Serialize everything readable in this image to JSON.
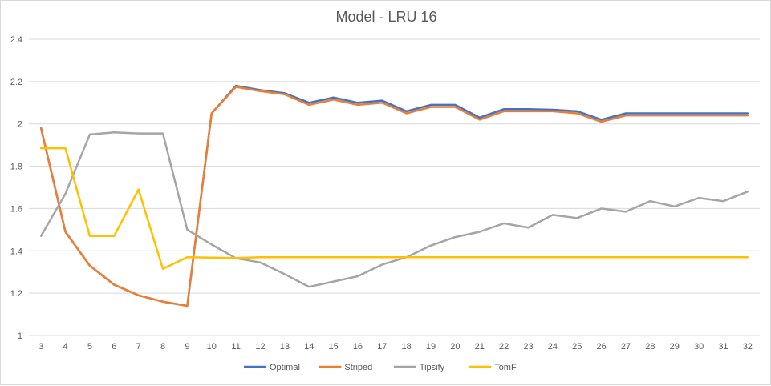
{
  "chart_data": {
    "type": "line",
    "title": "Model - LRU 16",
    "xlabel": "",
    "ylabel": "",
    "x": [
      3,
      4,
      5,
      6,
      7,
      8,
      9,
      10,
      11,
      12,
      13,
      14,
      15,
      16,
      17,
      18,
      19,
      20,
      21,
      22,
      23,
      24,
      25,
      26,
      27,
      28,
      29,
      30,
      31,
      32
    ],
    "ylim": [
      1,
      2.4
    ],
    "yticks": [
      "1",
      "1.2",
      "1.4",
      "1.6",
      "1.8",
      "2",
      "2.2",
      "2.4"
    ],
    "grid": "horizontal",
    "legend_position": "bottom",
    "series": [
      {
        "name": "Optimal",
        "color": "#4472C4",
        "values": [
          1.98,
          1.49,
          1.33,
          1.24,
          1.19,
          1.16,
          1.14,
          2.05,
          2.18,
          2.16,
          2.145,
          2.1,
          2.125,
          2.1,
          2.11,
          2.06,
          2.09,
          2.09,
          2.03,
          2.07,
          2.07,
          2.067,
          2.06,
          2.02,
          2.05,
          2.05,
          2.05,
          2.05,
          2.05,
          2.05
        ]
      },
      {
        "name": "Striped",
        "color": "#ED7D31",
        "values": [
          1.98,
          1.49,
          1.33,
          1.24,
          1.19,
          1.16,
          1.14,
          2.05,
          2.175,
          2.155,
          2.14,
          2.09,
          2.115,
          2.09,
          2.1,
          2.05,
          2.08,
          2.08,
          2.02,
          2.06,
          2.06,
          2.06,
          2.05,
          2.01,
          2.04,
          2.04,
          2.04,
          2.04,
          2.04,
          2.04
        ]
      },
      {
        "name": "Tipsify",
        "color": "#A5A5A5",
        "values": [
          1.47,
          1.67,
          1.95,
          1.96,
          1.955,
          1.955,
          1.5,
          1.43,
          1.365,
          1.345,
          1.29,
          1.23,
          1.255,
          1.28,
          1.335,
          1.37,
          1.425,
          1.465,
          1.49,
          1.53,
          1.51,
          1.57,
          1.555,
          1.6,
          1.585,
          1.635,
          1.61,
          1.65,
          1.635,
          1.68
        ]
      },
      {
        "name": "TomF",
        "color": "#FFC000",
        "values": [
          1.885,
          1.885,
          1.47,
          1.47,
          1.69,
          1.315,
          1.37,
          1.368,
          1.366,
          1.37,
          1.37,
          1.37,
          1.37,
          1.37,
          1.37,
          1.37,
          1.37,
          1.37,
          1.37,
          1.37,
          1.37,
          1.37,
          1.37,
          1.37,
          1.37,
          1.37,
          1.37,
          1.37,
          1.37,
          1.37
        ]
      }
    ]
  }
}
